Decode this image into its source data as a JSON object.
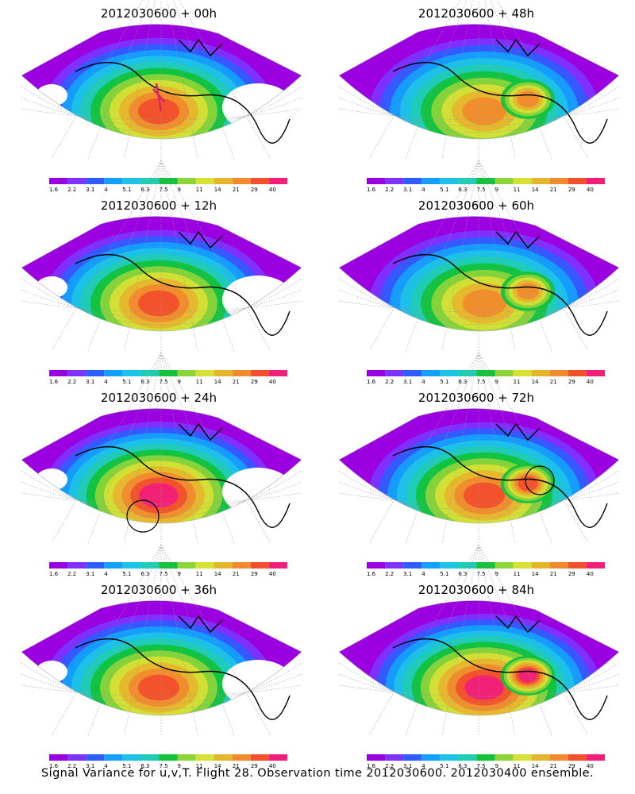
{
  "figure": {
    "caption": "Signal Variance for u,v,T. Flight 28. Observation time 2012030600. 2012030400 ensemble."
  },
  "colorbar": {
    "ticks": [
      "1.6",
      "2.2",
      "3.1",
      "4",
      "5.1",
      "6.3",
      "7.5",
      "9",
      "11",
      "14",
      "21",
      "29",
      "40"
    ],
    "colors": [
      "#9a00e0",
      "#7d32ff",
      "#2f5cff",
      "#15a0ff",
      "#1cc3e6",
      "#20ccb4",
      "#12c23a",
      "#8cd43a",
      "#d6e035",
      "#e6b52e",
      "#f08a2c",
      "#f2502c",
      "#f0207a"
    ]
  },
  "panels": [
    {
      "title": "2012030600 + 00h",
      "max_level": 11
    },
    {
      "title": "2012030600 + 48h",
      "max_level": 10
    },
    {
      "title": "2012030600 + 12h",
      "max_level": 11
    },
    {
      "title": "2012030600 + 60h",
      "max_level": 10
    },
    {
      "title": "2012030600 + 24h",
      "max_level": 12
    },
    {
      "title": "2012030600 + 72h",
      "max_level": 11
    },
    {
      "title": "2012030600 + 36h",
      "max_level": 11
    },
    {
      "title": "2012030600 + 84h",
      "max_level": 12
    }
  ]
}
